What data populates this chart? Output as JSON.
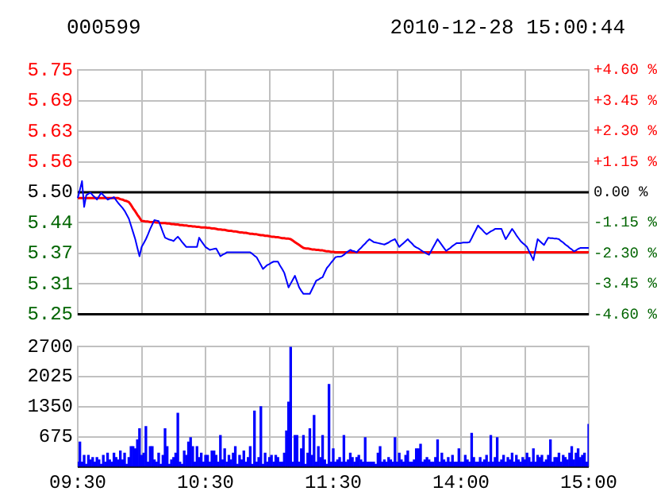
{
  "chart_data": [
    {
      "type": "line",
      "title": "000599",
      "subtitle": "2010-12-28 15:00:44",
      "categories": [
        null,
        null,
        null,
        null,
        null,
        null,
        null,
        null,
        null,
        null,
        null,
        null,
        null,
        null,
        null,
        null,
        null,
        null,
        null,
        null,
        null,
        null,
        null,
        null,
        null,
        null,
        null,
        null,
        null,
        null,
        null,
        null,
        null,
        null,
        null,
        null,
        null,
        null,
        null,
        null,
        null,
        null,
        null,
        null,
        null,
        null,
        null,
        null,
        null,
        null,
        null,
        null,
        null,
        null,
        null,
        null,
        null,
        null,
        null,
        null,
        null,
        null,
        null,
        null,
        null,
        null,
        null,
        null,
        null,
        null,
        null,
        null,
        null,
        null,
        null,
        null,
        null,
        null,
        null,
        null,
        null,
        null,
        null,
        null,
        null,
        null,
        null,
        null,
        null,
        null,
        null,
        null,
        null,
        null,
        null,
        null,
        null,
        null,
        null,
        null,
        null,
        null,
        null,
        null,
        null,
        null,
        null,
        null,
        null,
        null,
        null,
        null,
        null,
        null,
        null,
        null,
        null,
        null,
        null,
        null,
        null,
        null,
        null,
        null,
        null,
        null,
        null,
        null,
        null,
        null,
        null,
        null,
        null,
        null,
        null,
        null,
        null,
        null,
        null,
        null,
        null,
        null,
        null,
        null,
        null,
        null,
        null,
        null,
        null,
        null,
        null,
        null,
        null,
        null,
        null,
        null,
        null,
        null,
        null,
        null,
        null,
        null,
        null,
        null,
        null,
        null,
        null,
        null,
        null,
        null,
        null,
        null,
        null,
        null,
        null,
        null,
        null,
        null,
        null,
        null,
        null,
        null,
        null,
        null,
        null,
        null,
        null,
        null,
        null,
        null,
        null,
        null,
        null,
        null,
        null,
        null,
        null,
        null,
        null,
        null,
        null,
        null,
        null,
        null,
        null,
        null,
        null,
        null,
        null,
        null,
        null,
        null,
        null,
        null,
        null,
        null,
        null,
        null,
        null,
        null,
        null,
        null,
        null,
        null,
        null,
        null,
        null,
        null,
        null,
        null,
        null,
        null,
        null,
        null,
        null,
        null,
        null,
        null,
        null,
        null,
        null
      ],
      "ylim": [
        5.25,
        5.75
      ],
      "yticks": [
        5.25,
        {
          "value": 5.3125,
          "label": "5.31"
        },
        {
          "value": 5.375,
          "label": "5.37"
        },
        {
          "value": 5.4375,
          "label": "5.44"
        },
        {
          "value": 5.5,
          "label": "5.50"
        },
        {
          "value": 5.5625,
          "label": "5.56"
        },
        {
          "value": 5.625,
          "label": "5.63"
        },
        {
          "value": 5.6875,
          "label": "5.69"
        },
        5.75
      ],
      "y2lim": [
        -4.6,
        4.6
      ],
      "y2ticks": [
        {
          "value": -4.6,
          "label": "-4.60 %"
        },
        {
          "value": -3.45,
          "label": "-3.45 %"
        },
        {
          "value": -2.3,
          "label": "-2.30 %"
        },
        {
          "value": -1.15,
          "label": "-1.15 %"
        },
        {
          "value": 0,
          "label": "0.00 %"
        },
        {
          "value": 1.15,
          "label": "+1.15 %"
        },
        {
          "value": 2.3,
          "label": "+2.30 %"
        },
        {
          "value": 3.45,
          "label": "+3.45 %"
        },
        {
          "value": 4.6,
          "label": "+4.60 %"
        }
      ],
      "tick_labels": "y",
      "grid": true,
      "marker": "none",
      "ref_lines": [
        {
          "axis": "y",
          "value": 5.5,
          "color": "#000000"
        }
      ],
      "series": [
        {
          "color": "#0000ff",
          "values": [
            5.488,
            5.505,
            5.523,
            5.47,
            5.494,
            5.497,
            5.499,
            5.494,
            5.49,
            5.485,
            5.492,
            5.499,
            5.494,
            5.49,
            5.485,
            5.487,
            5.488,
            5.49,
            5.484,
            5.478,
            5.473,
            5.468,
            5.462,
            5.454,
            5.446,
            5.432,
            5.418,
            5.404,
            5.386,
            5.369,
            5.388,
            5.396,
            5.404,
            5.414,
            5.425,
            5.434,
            5.443,
            5.442,
            5.441,
            5.43,
            5.418,
            5.407,
            5.405,
            5.403,
            5.402,
            5.4,
            5.405,
            5.409,
            5.404,
            5.398,
            5.393,
            5.388,
            5.388,
            5.388,
            5.388,
            5.388,
            5.388,
            5.407,
            5.4,
            5.394,
            5.388,
            5.385,
            5.382,
            5.383,
            5.384,
            5.385,
            5.377,
            5.369,
            5.372,
            5.374,
            5.377,
            5.377,
            5.377,
            5.377,
            5.377,
            5.377,
            5.377,
            5.377,
            5.377,
            5.377,
            5.377,
            5.377,
            5.374,
            5.37,
            5.367,
            5.359,
            5.351,
            5.343,
            5.347,
            5.351,
            5.353,
            5.356,
            5.358,
            5.358,
            5.358,
            5.35,
            5.343,
            5.335,
            5.32,
            5.305,
            5.313,
            5.321,
            5.329,
            5.317,
            5.305,
            5.298,
            5.292,
            5.292,
            5.292,
            5.292,
            5.301,
            5.31,
            5.319,
            5.321,
            5.324,
            5.326,
            5.336,
            5.345,
            5.35,
            5.356,
            5.361,
            5.367,
            5.368,
            5.368,
            5.369,
            5.372,
            5.376,
            5.379,
            5.382,
            5.38,
            5.379,
            5.377,
            5.382,
            5.386,
            5.391,
            5.395,
            5.4,
            5.404,
            5.401,
            5.398,
            5.397,
            5.396,
            5.395,
            5.394,
            5.393,
            5.395,
            5.397,
            5.4,
            5.402,
            5.404,
            5.396,
            5.388,
            5.392,
            5.396,
            5.4,
            5.404,
            5.399,
            5.395,
            5.39,
            5.387,
            5.385,
            5.382,
            5.379,
            5.377,
            5.374,
            5.372,
            5.38,
            5.388,
            5.396,
            5.404,
            5.398,
            5.392,
            5.386,
            5.38,
            5.383,
            5.386,
            5.39,
            5.393,
            5.396,
            5.396,
            5.396,
            5.397,
            5.397,
            5.397,
            5.398,
            5.406,
            5.415,
            5.423,
            5.432,
            5.427,
            5.423,
            5.418,
            5.414,
            5.417,
            5.42,
            5.422,
            5.425,
            5.425,
            5.425,
            5.425,
            5.414,
            5.404,
            5.411,
            5.418,
            5.425,
            5.419,
            5.412,
            5.406,
            5.4,
            5.396,
            5.392,
            5.388,
            5.379,
            5.37,
            5.361,
            5.383,
            5.404,
            5.4,
            5.396,
            5.392,
            5.4,
            5.407,
            5.406,
            5.406,
            5.405,
            5.405,
            5.404,
            5.4,
            5.397,
            5.393,
            5.39,
            5.386,
            5.383,
            5.379,
            5.381,
            5.384,
            5.386,
            5.386,
            5.386,
            5.386,
            5.386
          ]
        },
        {
          "color": "#ff0000",
          "values": [
            5.488,
            5.488,
            5.488,
            5.488,
            5.488,
            5.488,
            5.488,
            5.488,
            5.488,
            5.488,
            5.488,
            5.488,
            5.488,
            5.488,
            5.488,
            5.488,
            5.488,
            5.488,
            5.488,
            5.488,
            5.486,
            5.485,
            5.483,
            5.482,
            5.48,
            5.474,
            5.467,
            5.461,
            5.454,
            5.448,
            5.441,
            5.441,
            5.44,
            5.44,
            5.439,
            5.439,
            5.439,
            5.438,
            5.438,
            5.437,
            5.437,
            5.437,
            5.436,
            5.436,
            5.435,
            5.435,
            5.434,
            5.434,
            5.433,
            5.433,
            5.432,
            5.432,
            5.431,
            5.431,
            5.43,
            5.43,
            5.429,
            5.429,
            5.428,
            5.428,
            5.428,
            5.427,
            5.427,
            5.426,
            5.426,
            5.425,
            5.424,
            5.424,
            5.423,
            5.423,
            5.422,
            5.421,
            5.421,
            5.42,
            5.42,
            5.419,
            5.418,
            5.418,
            5.417,
            5.417,
            5.416,
            5.415,
            5.415,
            5.414,
            5.414,
            5.413,
            5.412,
            5.412,
            5.411,
            5.411,
            5.41,
            5.409,
            5.409,
            5.408,
            5.408,
            5.407,
            5.406,
            5.406,
            5.405,
            5.405,
            5.404,
            5.401,
            5.398,
            5.395,
            5.392,
            5.389,
            5.386,
            5.385,
            5.385,
            5.384,
            5.383,
            5.383,
            5.382,
            5.382,
            5.381,
            5.381,
            5.38,
            5.379,
            5.379,
            5.378,
            5.378,
            5.377,
            5.377,
            5.377,
            5.377,
            5.377,
            5.377,
            5.377,
            5.377,
            5.377,
            5.377,
            5.377,
            5.377,
            5.377,
            5.377,
            5.377,
            5.377,
            5.377,
            5.377,
            5.377,
            5.377,
            5.377,
            5.377,
            5.377,
            5.377,
            5.377,
            5.377,
            5.377,
            5.377,
            5.377,
            5.377,
            5.377,
            5.377,
            5.377,
            5.377,
            5.377,
            5.377,
            5.377,
            5.377,
            5.377,
            5.377,
            5.377,
            5.377,
            5.377,
            5.377,
            5.377,
            5.377,
            5.377,
            5.377,
            5.377,
            5.377,
            5.377,
            5.377,
            5.377,
            5.377,
            5.377,
            5.377,
            5.377,
            5.377,
            5.377,
            5.377,
            5.377,
            5.377,
            5.377,
            5.377,
            5.377,
            5.377,
            5.377,
            5.377,
            5.377,
            5.377,
            5.377,
            5.377,
            5.377,
            5.377,
            5.377,
            5.377,
            5.377,
            5.377,
            5.377,
            5.377,
            5.377,
            5.377,
            5.377,
            5.377,
            5.377,
            5.377,
            5.377,
            5.377,
            5.377,
            5.377,
            5.377,
            5.377,
            5.377,
            5.377,
            5.377,
            5.377,
            5.377,
            5.377,
            5.377,
            5.377,
            5.377,
            5.377,
            5.377,
            5.377,
            5.377,
            5.377,
            5.377,
            5.377,
            5.377,
            5.377,
            5.377,
            5.377,
            5.377,
            5.377,
            5.377,
            5.377,
            5.377,
            5.377,
            5.377,
            5.377
          ]
        }
      ]
    },
    {
      "type": "bar",
      "color": "#0000ff",
      "categories": [
        "09:30",
        null,
        null,
        null,
        null,
        null,
        null,
        null,
        null,
        null,
        null,
        null,
        null,
        null,
        null,
        null,
        null,
        null,
        null,
        null,
        null,
        null,
        null,
        null,
        null,
        null,
        null,
        null,
        null,
        null,
        null,
        null,
        null,
        null,
        null,
        null,
        null,
        null,
        null,
        null,
        null,
        null,
        null,
        null,
        null,
        null,
        null,
        null,
        null,
        null,
        null,
        null,
        null,
        null,
        null,
        null,
        null,
        null,
        null,
        null,
        "10:30",
        null,
        null,
        null,
        null,
        null,
        null,
        null,
        null,
        null,
        null,
        null,
        null,
        null,
        null,
        null,
        null,
        null,
        null,
        null,
        null,
        null,
        null,
        null,
        null,
        null,
        null,
        null,
        null,
        null,
        null,
        null,
        null,
        null,
        null,
        null,
        null,
        null,
        null,
        null,
        null,
        null,
        null,
        null,
        null,
        null,
        null,
        null,
        null,
        null,
        null,
        null,
        null,
        null,
        null,
        null,
        null,
        null,
        null,
        null,
        "11:30",
        null,
        null,
        null,
        null,
        null,
        null,
        null,
        null,
        null,
        null,
        null,
        null,
        null,
        null,
        null,
        null,
        null,
        null,
        null,
        null,
        null,
        null,
        null,
        null,
        null,
        null,
        null,
        null,
        null,
        null,
        null,
        null,
        null,
        null,
        null,
        null,
        null,
        null,
        null,
        null,
        null,
        null,
        null,
        null,
        null,
        null,
        null,
        null,
        null,
        null,
        null,
        null,
        null,
        null,
        null,
        null,
        null,
        null,
        null,
        "14:00",
        null,
        null,
        null,
        null,
        null,
        null,
        null,
        null,
        null,
        null,
        null,
        null,
        null,
        null,
        null,
        null,
        null,
        null,
        null,
        null,
        null,
        null,
        null,
        null,
        null,
        null,
        null,
        null,
        null,
        null,
        null,
        null,
        null,
        null,
        null,
        null,
        null,
        null,
        null,
        null,
        null,
        null,
        null,
        null,
        null,
        null,
        null,
        null,
        null,
        null,
        null,
        null,
        null,
        null,
        null,
        null,
        null,
        null,
        null,
        "15:00"
      ],
      "ylim": [
        0,
        2700
      ],
      "yticks": [
        675,
        1350,
        2025,
        2700
      ],
      "grid": true,
      "values": [
        100,
        550,
        100,
        250,
        50,
        250,
        150,
        200,
        100,
        200,
        150,
        50,
        250,
        100,
        300,
        150,
        100,
        300,
        200,
        150,
        350,
        150,
        300,
        50,
        200,
        450,
        450,
        400,
        600,
        850,
        250,
        300,
        900,
        100,
        450,
        450,
        150,
        100,
        300,
        50,
        250,
        850,
        450,
        50,
        150,
        200,
        300,
        1200,
        100,
        50,
        350,
        250,
        550,
        650,
        450,
        100,
        450,
        200,
        300,
        100,
        250,
        250,
        100,
        350,
        350,
        250,
        100,
        700,
        150,
        400,
        100,
        250,
        150,
        300,
        450,
        50,
        250,
        150,
        350,
        100,
        200,
        450,
        50,
        1250,
        100,
        200,
        1350,
        50,
        300,
        100,
        200,
        250,
        100,
        250,
        200,
        100,
        100,
        300,
        800,
        1450,
        2700,
        100,
        700,
        700,
        100,
        400,
        700,
        50,
        300,
        850,
        250,
        1150,
        100,
        450,
        200,
        700,
        150,
        50,
        1850,
        100,
        400,
        100,
        150,
        200,
        100,
        700,
        100,
        150,
        300,
        200,
        100,
        200,
        250,
        150,
        100,
        650,
        100,
        100,
        100,
        100,
        50,
        300,
        450,
        100,
        150,
        100,
        200,
        150,
        100,
        650,
        100,
        300,
        150,
        100,
        250,
        350,
        100,
        100,
        150,
        400,
        400,
        500,
        100,
        150,
        200,
        150,
        100,
        100,
        200,
        600,
        100,
        300,
        150,
        100,
        200,
        100,
        250,
        100,
        100,
        400,
        100,
        100,
        250,
        150,
        100,
        750,
        200,
        100,
        100,
        200,
        100,
        150,
        250,
        100,
        700,
        100,
        200,
        650,
        100,
        150,
        250,
        100,
        200,
        150,
        300,
        100,
        250,
        150,
        100,
        200,
        150,
        300,
        200,
        100,
        400,
        100,
        250,
        200,
        250,
        100,
        150,
        250,
        600,
        100,
        200,
        200,
        300,
        100,
        250,
        200,
        150,
        300,
        450,
        150,
        300,
        400,
        200,
        250,
        300,
        100,
        950
      ]
    }
  ]
}
